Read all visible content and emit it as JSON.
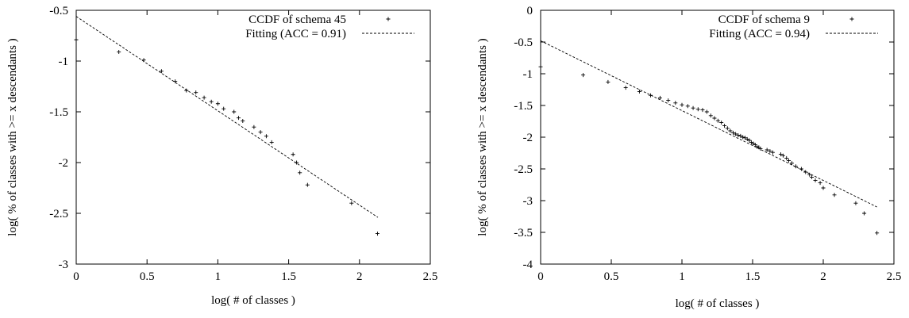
{
  "chart_data": [
    {
      "type": "scatter",
      "xlabel": "log( # of classes )",
      "ylabel": "log( % of classes with >= x descendants )",
      "xlim": [
        0,
        2.5
      ],
      "ylim": [
        -3,
        -0.5
      ],
      "xticks": [
        0,
        0.5,
        1,
        1.5,
        2,
        2.5
      ],
      "yticks": [
        -3,
        -2.5,
        -2,
        -1.5,
        -1,
        -0.5
      ],
      "xtick_labels": [
        "0",
        "0.5",
        "1",
        "1.5",
        "2",
        "2.5"
      ],
      "ytick_labels": [
        "-3",
        "-2.5",
        "-2",
        "-1.5",
        "-1",
        "-0.5"
      ],
      "grid": false,
      "legend_position": "top-right",
      "series": [
        {
          "name": "CCDF of schema 45",
          "kind": "points",
          "marker": "plus",
          "x": [
            0,
            0.301,
            0.477,
            0.602,
            0.699,
            0.778,
            0.845,
            0.903,
            0.954,
            1.0,
            1.041,
            1.114,
            1.146,
            1.176,
            1.255,
            1.301,
            1.342,
            1.38,
            1.531,
            1.556,
            1.579,
            1.633,
            1.944,
            2.127
          ],
          "y": [
            -0.79,
            -0.91,
            -0.99,
            -1.1,
            -1.2,
            -1.29,
            -1.31,
            -1.36,
            -1.4,
            -1.42,
            -1.47,
            -1.5,
            -1.56,
            -1.59,
            -1.65,
            -1.7,
            -1.74,
            -1.8,
            -1.92,
            -2.0,
            -2.1,
            -2.22,
            -2.4,
            -2.7
          ]
        },
        {
          "name": "Fitting (ACC = 0.91)",
          "kind": "line",
          "dash": "dashed",
          "x": [
            0,
            2.13
          ],
          "y": [
            -0.56,
            -2.54
          ]
        }
      ]
    },
    {
      "type": "scatter",
      "xlabel": "log( # of classes )",
      "ylabel": "log( % of classes with >= x descendants )",
      "xlim": [
        0,
        2.5
      ],
      "ylim": [
        -4,
        0
      ],
      "xticks": [
        0,
        0.5,
        1,
        1.5,
        2,
        2.5
      ],
      "yticks": [
        -4,
        -3.5,
        -3,
        -2.5,
        -2,
        -1.5,
        -1,
        -0.5,
        0
      ],
      "xtick_labels": [
        "0",
        "0.5",
        "1",
        "1.5",
        "2",
        "2.5"
      ],
      "ytick_labels": [
        "-4",
        "-3.5",
        "-3",
        "-2.5",
        "-2",
        "-1.5",
        "-1",
        "-0.5",
        "0"
      ],
      "grid": false,
      "legend_position": "top-right",
      "series": [
        {
          "name": "CCDF of schema 9",
          "kind": "points",
          "marker": "plus",
          "x": [
            0,
            0.301,
            0.477,
            0.602,
            0.699,
            0.778,
            0.845,
            0.903,
            0.954,
            1.0,
            1.041,
            1.079,
            1.114,
            1.146,
            1.176,
            1.204,
            1.23,
            1.255,
            1.279,
            1.301,
            1.322,
            1.342,
            1.362,
            1.38,
            1.398,
            1.415,
            1.431,
            1.447,
            1.462,
            1.477,
            1.491,
            1.505,
            1.519,
            1.531,
            1.544,
            1.556,
            1.602,
            1.623,
            1.643,
            1.699,
            1.716,
            1.74,
            1.756,
            1.778,
            1.806,
            1.845,
            1.875,
            1.903,
            1.919,
            1.944,
            1.978,
            2.0,
            2.079,
            2.23,
            2.29,
            2.38
          ],
          "y": [
            -0.89,
            -1.02,
            -1.13,
            -1.22,
            -1.28,
            -1.34,
            -1.38,
            -1.42,
            -1.46,
            -1.49,
            -1.51,
            -1.54,
            -1.56,
            -1.57,
            -1.6,
            -1.66,
            -1.7,
            -1.74,
            -1.77,
            -1.82,
            -1.86,
            -1.9,
            -1.93,
            -1.95,
            -1.97,
            -1.98,
            -2.0,
            -2.01,
            -2.03,
            -2.05,
            -2.08,
            -2.1,
            -2.12,
            -2.15,
            -2.16,
            -2.18,
            -2.2,
            -2.22,
            -2.24,
            -2.27,
            -2.29,
            -2.33,
            -2.37,
            -2.41,
            -2.46,
            -2.5,
            -2.55,
            -2.59,
            -2.63,
            -2.68,
            -2.72,
            -2.8,
            -2.91,
            -3.04,
            -3.2,
            -3.51
          ]
        },
        {
          "name": "Fitting (ACC = 0.94)",
          "kind": "line",
          "dash": "dashed",
          "x": [
            0,
            2.38
          ],
          "y": [
            -0.48,
            -3.1
          ]
        }
      ]
    }
  ]
}
